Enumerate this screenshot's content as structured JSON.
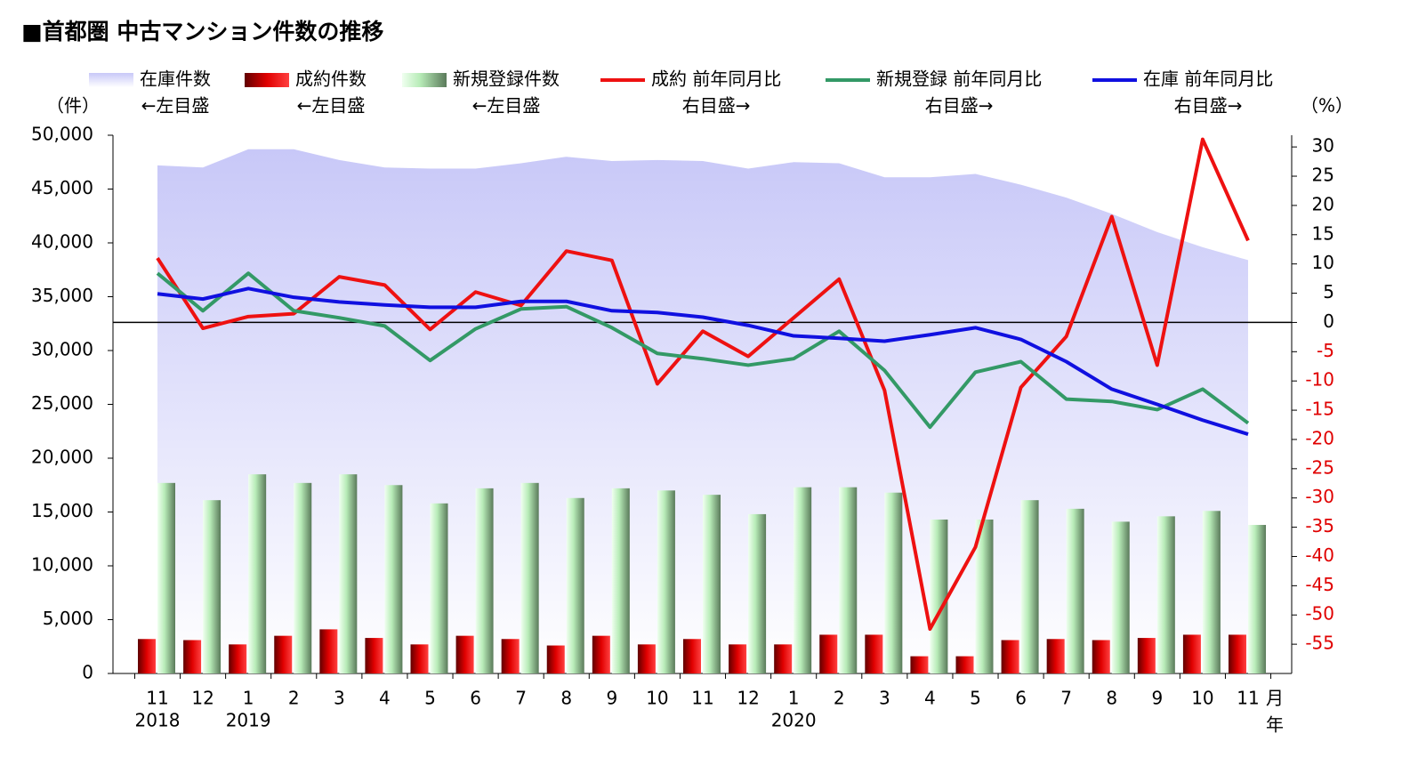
{
  "chart_data": {
    "type": "combo",
    "title": "■首都圏 中古マンション件数の推移",
    "y_axis_label": "（件）",
    "y2_axis_label": "（%）",
    "x_unit_labels": [
      "月",
      "年"
    ],
    "categories": [
      "11",
      "12",
      "1",
      "2",
      "3",
      "4",
      "5",
      "6",
      "7",
      "8",
      "9",
      "10",
      "11",
      "12",
      "1",
      "2",
      "3",
      "4",
      "5",
      "6",
      "7",
      "8",
      "9",
      "10",
      "11"
    ],
    "year_labels": [
      "2018",
      null,
      "2019",
      null,
      null,
      null,
      null,
      null,
      null,
      null,
      null,
      null,
      null,
      null,
      "2020",
      null,
      null,
      null,
      null,
      null,
      null,
      null,
      null,
      null,
      null
    ],
    "ylim": [
      0,
      50000
    ],
    "yticks": [
      0,
      {
        "value": 5000,
        "label": "5,000"
      },
      {
        "value": 10000,
        "label": "10,000"
      },
      {
        "value": 15000,
        "label": "15,000"
      },
      {
        "value": 20000,
        "label": "20,000"
      },
      {
        "value": 25000,
        "label": "25,000"
      },
      {
        "value": 30000,
        "label": "30,000"
      },
      {
        "value": 35000,
        "label": "35,000"
      },
      {
        "value": 40000,
        "label": "40,000"
      },
      {
        "value": 45000,
        "label": "45,000"
      },
      {
        "value": 50000,
        "label": "50,000"
      }
    ],
    "y2lim": [
      -60,
      32
    ],
    "y2ticks": [
      30,
      25,
      20,
      15,
      10,
      5,
      0,
      -5,
      -10,
      -15,
      -20,
      -25,
      -30,
      -35,
      -40,
      -45,
      -50,
      -55
    ],
    "y2_zero_line": true,
    "series": [
      {
        "name": "在庫件数",
        "axis_note": "←左目盛",
        "type": "area",
        "color": "#c8c8f8",
        "values": [
          47200,
          47000,
          48700,
          48700,
          47700,
          47000,
          46900,
          46900,
          47400,
          48000,
          47600,
          47700,
          47600,
          46900,
          47500,
          47400,
          46100,
          46100,
          46400,
          45400,
          44200,
          42700,
          41000,
          39600,
          38400
        ]
      },
      {
        "name": "成約件数",
        "axis_note": "←左目盛",
        "type": "bar",
        "color": "#e00000",
        "values": [
          3200,
          3100,
          2700,
          3500,
          4100,
          3300,
          2700,
          3500,
          3200,
          2600,
          3500,
          2700,
          3200,
          2700,
          2700,
          3600,
          3600,
          1600,
          1600,
          3100,
          3200,
          3100,
          3300,
          3600,
          3600
        ]
      },
      {
        "name": "新規登録件数",
        "axis_note": "←左目盛",
        "type": "bar",
        "color": "#b8ecb8",
        "values": [
          17700,
          16100,
          18500,
          17700,
          18500,
          17500,
          15800,
          17200,
          17700,
          16300,
          17200,
          17000,
          16600,
          14800,
          17300,
          17300,
          16800,
          14300,
          14300,
          16100,
          15300,
          14100,
          14600,
          15100,
          13800
        ]
      },
      {
        "name": "成約 前年同月比",
        "axis_note": "右目盛→",
        "type": "line",
        "axis": "y2",
        "color": "#ee1111",
        "values": [
          11,
          -1,
          1,
          1.5,
          7.8,
          6.4,
          -1.2,
          5.2,
          2.9,
          12.2,
          10.6,
          -10.5,
          -1.5,
          -5.8,
          0.8,
          7.4,
          -11.6,
          -52.4,
          -38.4,
          -11.1,
          -2.4,
          18.1,
          -7.3,
          31.3,
          14
        ]
      },
      {
        "name": "新規登録 前年同月比",
        "axis_note": "右目盛→",
        "type": "line",
        "axis": "y2",
        "color": "#339966",
        "values": [
          8.4,
          2,
          8.4,
          2,
          0.8,
          -0.6,
          -6.5,
          -1.1,
          2.3,
          2.7,
          -0.9,
          -5.3,
          -6.2,
          -7.3,
          -6.2,
          -1.5,
          -8.2,
          -17.9,
          -8.5,
          -6.7,
          -13.1,
          -13.5,
          -14.9,
          -11.4,
          -17.2
        ]
      },
      {
        "name": "在庫 前年同月比",
        "axis_note": "右目盛→",
        "type": "line",
        "axis": "y2",
        "color": "#1010e0",
        "values": [
          4.9,
          4,
          5.8,
          4.3,
          3.5,
          3,
          2.6,
          2.6,
          3.6,
          3.6,
          2,
          1.7,
          0.9,
          -0.5,
          -2.3,
          -2.7,
          -3.2,
          -2.1,
          -0.9,
          -2.9,
          -6.7,
          -11.4,
          -14,
          -16.7,
          -19.1
        ]
      }
    ]
  }
}
